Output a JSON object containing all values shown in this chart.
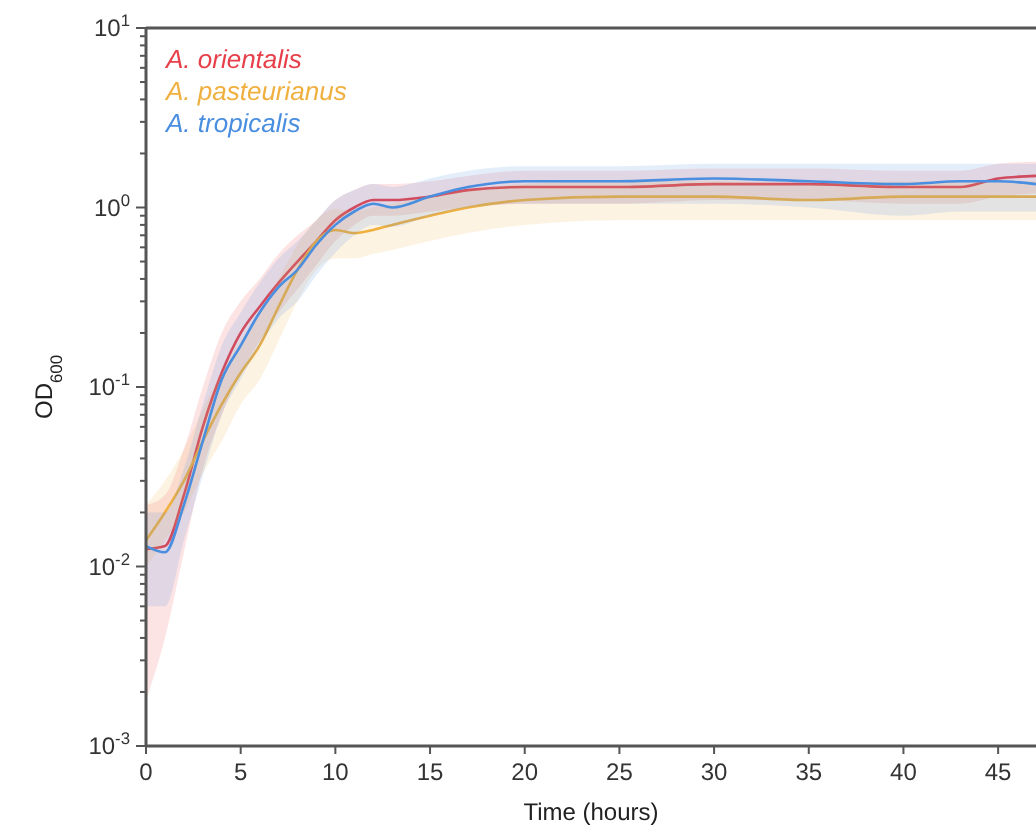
{
  "chart_data": {
    "type": "line",
    "xlabel": "Time (hours)",
    "ylabel": "OD$_{600}$",
    "log": "y",
    "legend": "top left",
    "grid": false,
    "line_style": "solid",
    "marker": "none",
    "xlim": [
      0,
      47
    ],
    "xticks": [
      0,
      5,
      10,
      15,
      20,
      25,
      30,
      35,
      40,
      45
    ],
    "ylim": [
      0.001,
      10
    ],
    "yticks": [
      {
        "value": 0.001,
        "label": "10$^{-3}$"
      },
      {
        "value": 0.002,
        "label": null
      },
      {
        "value": 0.003,
        "label": null
      },
      {
        "value": 0.004,
        "label": null
      },
      {
        "value": 0.005,
        "label": null
      },
      {
        "value": 0.006,
        "label": null
      },
      {
        "value": 0.007,
        "label": null
      },
      {
        "value": 0.008,
        "label": null
      },
      {
        "value": 0.009,
        "label": null
      },
      {
        "value": 0.01,
        "label": "10$^{-2}$"
      },
      {
        "value": 0.02,
        "label": null
      },
      {
        "value": 0.03,
        "label": null
      },
      {
        "value": 0.04,
        "label": null
      },
      {
        "value": 0.05,
        "label": null
      },
      {
        "value": 0.06,
        "label": null
      },
      {
        "value": 0.07,
        "label": null
      },
      {
        "value": 0.08,
        "label": null
      },
      {
        "value": 0.09,
        "label": null
      },
      {
        "value": 0.1,
        "label": "10$^{-1}$"
      },
      {
        "value": 0.2,
        "label": null
      },
      {
        "value": 0.3,
        "label": null
      },
      {
        "value": 0.4,
        "label": null
      },
      {
        "value": 0.5,
        "label": null
      },
      {
        "value": 0.6,
        "label": null
      },
      {
        "value": 0.7,
        "label": null
      },
      {
        "value": 0.8,
        "label": null
      },
      {
        "value": 0.9,
        "label": null
      },
      {
        "value": 1,
        "label": "10$^{0}$"
      },
      {
        "value": 2,
        "label": null
      },
      {
        "value": 3,
        "label": null
      },
      {
        "value": 4,
        "label": null
      },
      {
        "value": 5,
        "label": null
      },
      {
        "value": 6,
        "label": null
      },
      {
        "value": 7,
        "label": null
      },
      {
        "value": 8,
        "label": null
      },
      {
        "value": 9,
        "label": null
      },
      {
        "value": 10,
        "label": "10$^{1}$"
      }
    ],
    "x": [
      0,
      1,
      2,
      3,
      4,
      5,
      6,
      7,
      8,
      9,
      10,
      11,
      12,
      13,
      15,
      17,
      20,
      25,
      30,
      35,
      40,
      43,
      45,
      47
    ],
    "series": [
      {
        "name": "A. orientalis",
        "color": "#e8404a",
        "values": [
          0.0125,
          0.013,
          0.025,
          0.06,
          0.12,
          0.2,
          0.28,
          0.38,
          0.5,
          0.65,
          0.85,
          1.0,
          1.1,
          1.1,
          1.15,
          1.25,
          1.3,
          1.3,
          1.35,
          1.35,
          1.3,
          1.3,
          1.45,
          1.5
        ],
        "lower": [
          0.0018,
          0.004,
          0.012,
          0.035,
          0.07,
          0.12,
          0.18,
          0.26,
          0.35,
          0.48,
          0.65,
          0.8,
          0.9,
          0.9,
          0.95,
          1.0,
          1.05,
          1.05,
          1.1,
          1.1,
          1.05,
          1.05,
          1.15,
          1.2
        ],
        "upper": [
          0.022,
          0.025,
          0.045,
          0.1,
          0.2,
          0.3,
          0.4,
          0.55,
          0.7,
          0.85,
          1.1,
          1.25,
          1.35,
          1.35,
          1.4,
          1.5,
          1.6,
          1.6,
          1.65,
          1.65,
          1.6,
          1.6,
          1.75,
          1.8
        ]
      },
      {
        "name": "A. pasteurianus",
        "color": "#f0b040",
        "values": [
          0.014,
          0.02,
          0.03,
          0.05,
          0.08,
          0.12,
          0.17,
          0.28,
          0.45,
          0.65,
          0.75,
          0.72,
          0.75,
          0.8,
          0.9,
          1.0,
          1.1,
          1.15,
          1.15,
          1.1,
          1.15,
          1.15,
          1.15,
          1.15
        ],
        "lower": [
          0.01,
          0.014,
          0.02,
          0.033,
          0.05,
          0.08,
          0.11,
          0.18,
          0.3,
          0.45,
          0.52,
          0.52,
          0.55,
          0.58,
          0.65,
          0.72,
          0.8,
          0.85,
          0.85,
          0.85,
          0.85,
          0.85,
          0.85,
          0.85
        ],
        "upper": [
          0.022,
          0.03,
          0.045,
          0.075,
          0.12,
          0.18,
          0.26,
          0.4,
          0.62,
          0.85,
          0.98,
          0.95,
          1.0,
          1.05,
          1.15,
          1.25,
          1.35,
          1.4,
          1.4,
          1.35,
          1.4,
          1.4,
          1.4,
          1.4
        ]
      },
      {
        "name": "A. tropicalis",
        "color": "#4a8ee0",
        "values": [
          0.013,
          0.012,
          0.022,
          0.05,
          0.11,
          0.17,
          0.26,
          0.36,
          0.45,
          0.62,
          0.8,
          0.95,
          1.05,
          1.0,
          1.15,
          1.3,
          1.4,
          1.4,
          1.45,
          1.4,
          1.35,
          1.4,
          1.4,
          1.35
        ],
        "lower": [
          0.006,
          0.006,
          0.014,
          0.032,
          0.07,
          0.11,
          0.17,
          0.24,
          0.3,
          0.42,
          0.56,
          0.7,
          0.8,
          0.78,
          0.9,
          1.0,
          1.05,
          1.05,
          1.05,
          1.0,
          0.9,
          0.95,
          0.95,
          0.95
        ],
        "upper": [
          0.02,
          0.02,
          0.035,
          0.08,
          0.17,
          0.26,
          0.38,
          0.52,
          0.65,
          0.85,
          1.1,
          1.25,
          1.35,
          1.3,
          1.45,
          1.6,
          1.7,
          1.7,
          1.75,
          1.75,
          1.75,
          1.75,
          1.75,
          1.75
        ]
      }
    ]
  }
}
